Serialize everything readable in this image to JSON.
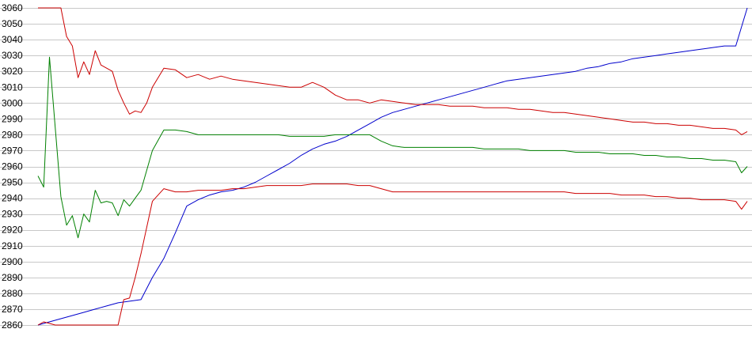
{
  "chart_data": {
    "type": "line",
    "title": "",
    "xlabel": "",
    "ylabel": "",
    "ylim": [
      2860,
      3060
    ],
    "xlim": [
      0,
      124
    ],
    "yticks": [
      2860,
      2870,
      2880,
      2890,
      2900,
      2910,
      2920,
      2930,
      2940,
      2950,
      2960,
      2970,
      2980,
      2990,
      3000,
      3010,
      3020,
      3030,
      3040,
      3050,
      3060
    ],
    "grid": "horizontal",
    "legend": "none",
    "series": [
      {
        "color": "#0000cc",
        "x": [
          0,
          4,
          6,
          8,
          10,
          12,
          14,
          16,
          18,
          20,
          22,
          24,
          26,
          28,
          30,
          32,
          34,
          36,
          38,
          40,
          42,
          44,
          46,
          48,
          50,
          52,
          54,
          56,
          58,
          60,
          62,
          64,
          66,
          68,
          70,
          72,
          74,
          76,
          78,
          80,
          82,
          84,
          86,
          88,
          90,
          92,
          94,
          96,
          98,
          100,
          102,
          104,
          106,
          108,
          110,
          112,
          114,
          116,
          118,
          120,
          122,
          124
        ],
        "y": [
          2860,
          2864,
          2866,
          2868,
          2870,
          2872,
          2874,
          2875,
          2876,
          2890,
          2902,
          2918,
          2935,
          2939,
          2942,
          2944,
          2945,
          2947,
          2950,
          2954,
          2958,
          2962,
          2967,
          2971,
          2974,
          2976,
          2979,
          2983,
          2987,
          2991,
          2994,
          2996,
          2998,
          3000,
          3002,
          3004,
          3006,
          3008,
          3010,
          3012,
          3014,
          3015,
          3016,
          3017,
          3018,
          3019,
          3020,
          3022,
          3023,
          3025,
          3026,
          3028,
          3029,
          3030,
          3031,
          3032,
          3033,
          3034,
          3035,
          3036,
          3036,
          3060
        ]
      },
      {
        "color": "#cc0000",
        "x": [
          0,
          4,
          5,
          6,
          7,
          8,
          9,
          10,
          11,
          12,
          13,
          14,
          15,
          16,
          17,
          18,
          19,
          20,
          22,
          24,
          26,
          28,
          30,
          32,
          34,
          36,
          38,
          40,
          42,
          44,
          46,
          48,
          50,
          52,
          54,
          56,
          58,
          60,
          62,
          64,
          66,
          68,
          70,
          72,
          74,
          76,
          78,
          80,
          82,
          84,
          86,
          88,
          90,
          92,
          94,
          96,
          98,
          100,
          102,
          104,
          106,
          108,
          110,
          112,
          114,
          116,
          118,
          120,
          122,
          123,
          124
        ],
        "y": [
          3060,
          3060,
          3042,
          3036,
          3016,
          3026,
          3018,
          3033,
          3024,
          3022,
          3020,
          3008,
          3000,
          2993,
          2995,
          2994,
          3000,
          3010,
          3022,
          3021,
          3016,
          3018,
          3015,
          3017,
          3015,
          3014,
          3013,
          3012,
          3011,
          3010,
          3010,
          3013,
          3010,
          3005,
          3002,
          3002,
          3000,
          3002,
          3001,
          3000,
          2999,
          2999,
          2999,
          2998,
          2998,
          2998,
          2997,
          2997,
          2997,
          2996,
          2996,
          2995,
          2994,
          2994,
          2993,
          2992,
          2991,
          2990,
          2989,
          2988,
          2988,
          2987,
          2987,
          2986,
          2986,
          2985,
          2984,
          2984,
          2983,
          2980,
          2982
        ]
      },
      {
        "color": "#008000",
        "x": [
          0,
          1,
          2,
          3,
          4,
          5,
          6,
          7,
          8,
          9,
          10,
          11,
          12,
          13,
          14,
          15,
          16,
          17,
          18,
          20,
          22,
          24,
          26,
          28,
          30,
          32,
          34,
          36,
          38,
          40,
          42,
          44,
          46,
          48,
          50,
          52,
          54,
          56,
          58,
          60,
          62,
          64,
          66,
          68,
          70,
          72,
          74,
          76,
          78,
          80,
          82,
          84,
          86,
          88,
          90,
          92,
          94,
          96,
          98,
          100,
          102,
          104,
          106,
          108,
          110,
          112,
          114,
          116,
          118,
          120,
          122,
          123,
          124
        ],
        "y": [
          2954,
          2947,
          3029,
          2985,
          2941,
          2923,
          2929,
          2915,
          2930,
          2925,
          2945,
          2937,
          2938,
          2937,
          2929,
          2939,
          2935,
          2940,
          2945,
          2970,
          2983,
          2983,
          2982,
          2980,
          2980,
          2980,
          2980,
          2980,
          2980,
          2980,
          2980,
          2979,
          2979,
          2979,
          2979,
          2980,
          2980,
          2980,
          2980,
          2976,
          2973,
          2972,
          2972,
          2972,
          2972,
          2972,
          2972,
          2972,
          2971,
          2971,
          2971,
          2971,
          2970,
          2970,
          2970,
          2970,
          2969,
          2969,
          2969,
          2968,
          2968,
          2968,
          2967,
          2967,
          2966,
          2966,
          2965,
          2965,
          2964,
          2964,
          2963,
          2956,
          2960
        ]
      },
      {
        "color": "#cc0000",
        "x": [
          0,
          1,
          2,
          3,
          4,
          5,
          6,
          7,
          8,
          9,
          10,
          11,
          12,
          13,
          14,
          15,
          16,
          17,
          18,
          20,
          22,
          24,
          26,
          28,
          30,
          32,
          34,
          36,
          38,
          40,
          42,
          44,
          46,
          48,
          50,
          52,
          54,
          56,
          58,
          60,
          62,
          64,
          66,
          68,
          70,
          72,
          74,
          76,
          78,
          80,
          82,
          84,
          86,
          88,
          90,
          92,
          94,
          96,
          98,
          100,
          102,
          104,
          106,
          108,
          110,
          112,
          114,
          116,
          118,
          120,
          122,
          123,
          124
        ],
        "y": [
          2860,
          2862,
          2861,
          2860,
          2860,
          2860,
          2860,
          2860,
          2860,
          2860,
          2860,
          2860,
          2860,
          2860,
          2860,
          2876,
          2877,
          2890,
          2905,
          2938,
          2946,
          2944,
          2944,
          2945,
          2945,
          2945,
          2946,
          2946,
          2947,
          2948,
          2948,
          2948,
          2948,
          2949,
          2949,
          2949,
          2949,
          2948,
          2948,
          2946,
          2944,
          2944,
          2944,
          2944,
          2944,
          2944,
          2944,
          2944,
          2944,
          2944,
          2944,
          2944,
          2944,
          2944,
          2944,
          2944,
          2943,
          2943,
          2943,
          2943,
          2942,
          2942,
          2942,
          2941,
          2941,
          2940,
          2940,
          2939,
          2939,
          2939,
          2938,
          2933,
          2938
        ]
      }
    ]
  }
}
